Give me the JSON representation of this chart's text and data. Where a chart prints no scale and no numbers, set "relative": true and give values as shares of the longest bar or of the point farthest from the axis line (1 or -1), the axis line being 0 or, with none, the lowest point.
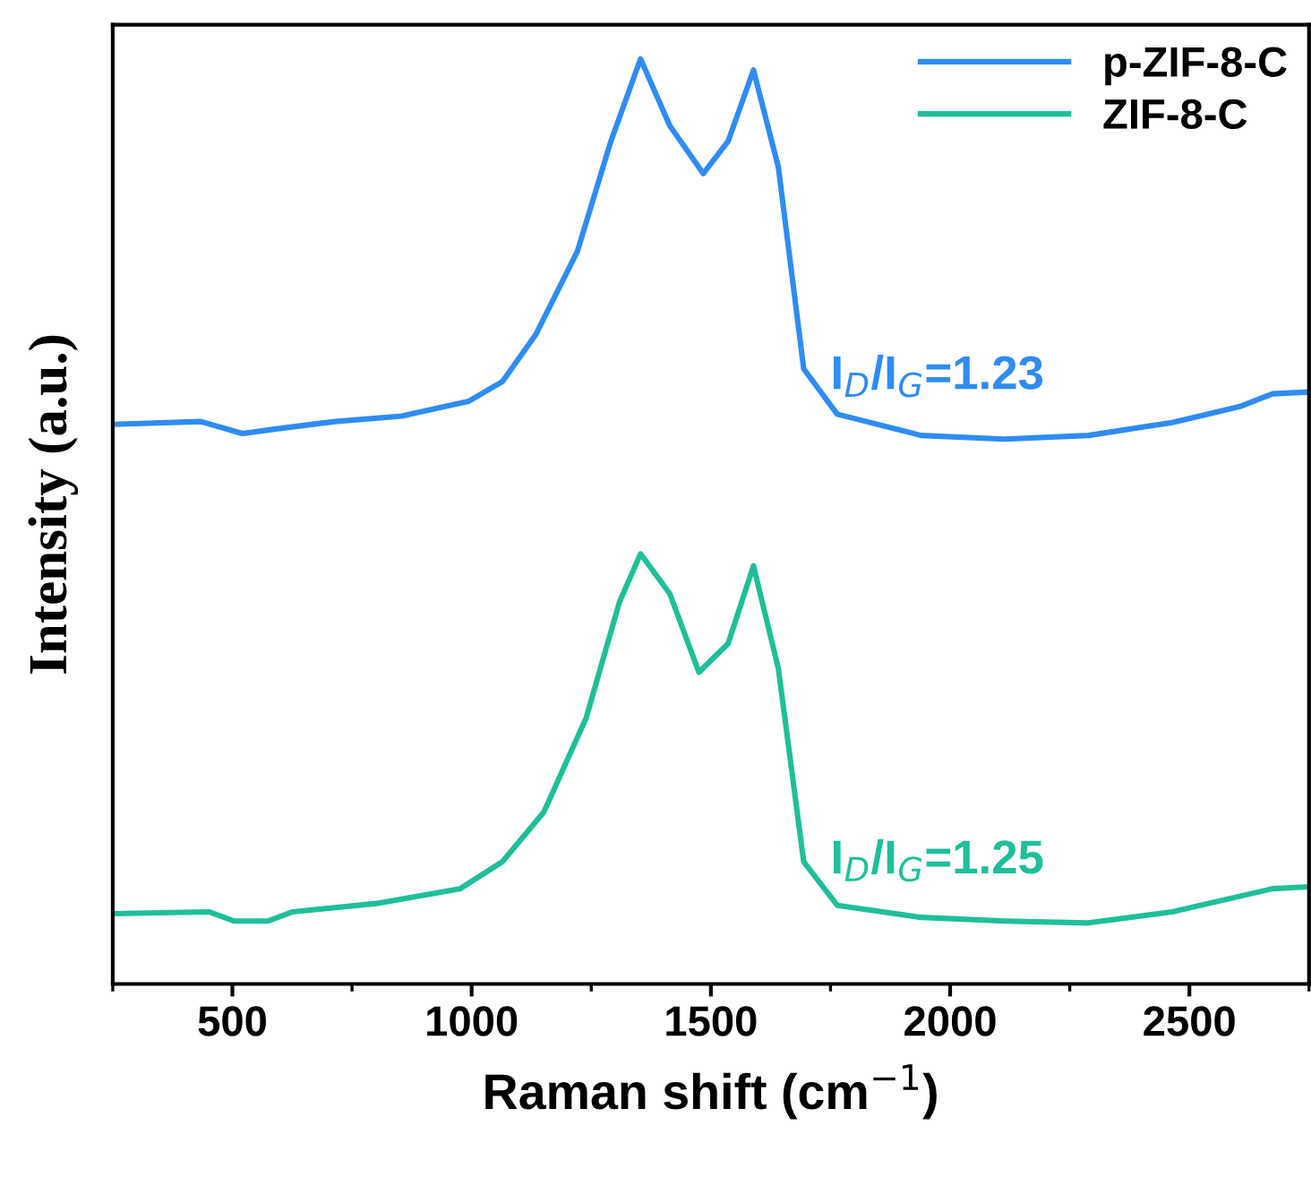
{
  "chart_data": {
    "type": "line",
    "relative": true,
    "xlabel": "Raman shift (cm$^{−1}$)",
    "ylabel": "Intensity (a.u.)",
    "xlim": [
      250,
      2750
    ],
    "xticks": [
      500,
      1000,
      1500,
      2000,
      2500
    ],
    "legend": "top right",
    "grid": false,
    "annotations": [
      "I$_{D}$/I$_{G}$=1.23",
      "I$_{D}$/I$_{G}$=1.25"
    ],
    "series": [
      {
        "name": "p-ZIF-8-C",
        "color": "#2f8cf4",
        "x": [
          250,
          434,
          521,
          591,
          714,
          854,
          994,
          1064,
          1134,
          1221,
          1291,
          1353,
          1414,
          1484,
          1536,
          1589,
          1641,
          1694,
          1764,
          1939,
          2114,
          2289,
          2464,
          2604,
          2674,
          2750
        ],
        "values": [
          0.605,
          0.608,
          0.595,
          0.6,
          0.608,
          0.614,
          0.63,
          0.651,
          0.702,
          0.792,
          0.911,
          1.0,
          0.928,
          0.876,
          0.911,
          0.988,
          0.883,
          0.665,
          0.616,
          0.593,
          0.589,
          0.593,
          0.607,
          0.624,
          0.638,
          0.64
        ]
      },
      {
        "name": "ZIF-8-C",
        "color": "#1fbf9a",
        "x": [
          250,
          451,
          504,
          574,
          626,
          801,
          976,
          1064,
          1151,
          1239,
          1309,
          1353,
          1414,
          1475,
          1536,
          1589,
          1641,
          1694,
          1764,
          1939,
          2114,
          2289,
          2464,
          2674,
          2750
        ],
        "values": [
          0.076,
          0.078,
          0.068,
          0.068,
          0.078,
          0.087,
          0.103,
          0.132,
          0.186,
          0.287,
          0.413,
          0.465,
          0.422,
          0.337,
          0.368,
          0.452,
          0.341,
          0.132,
          0.085,
          0.072,
          0.068,
          0.066,
          0.078,
          0.103,
          0.105
        ]
      }
    ]
  }
}
